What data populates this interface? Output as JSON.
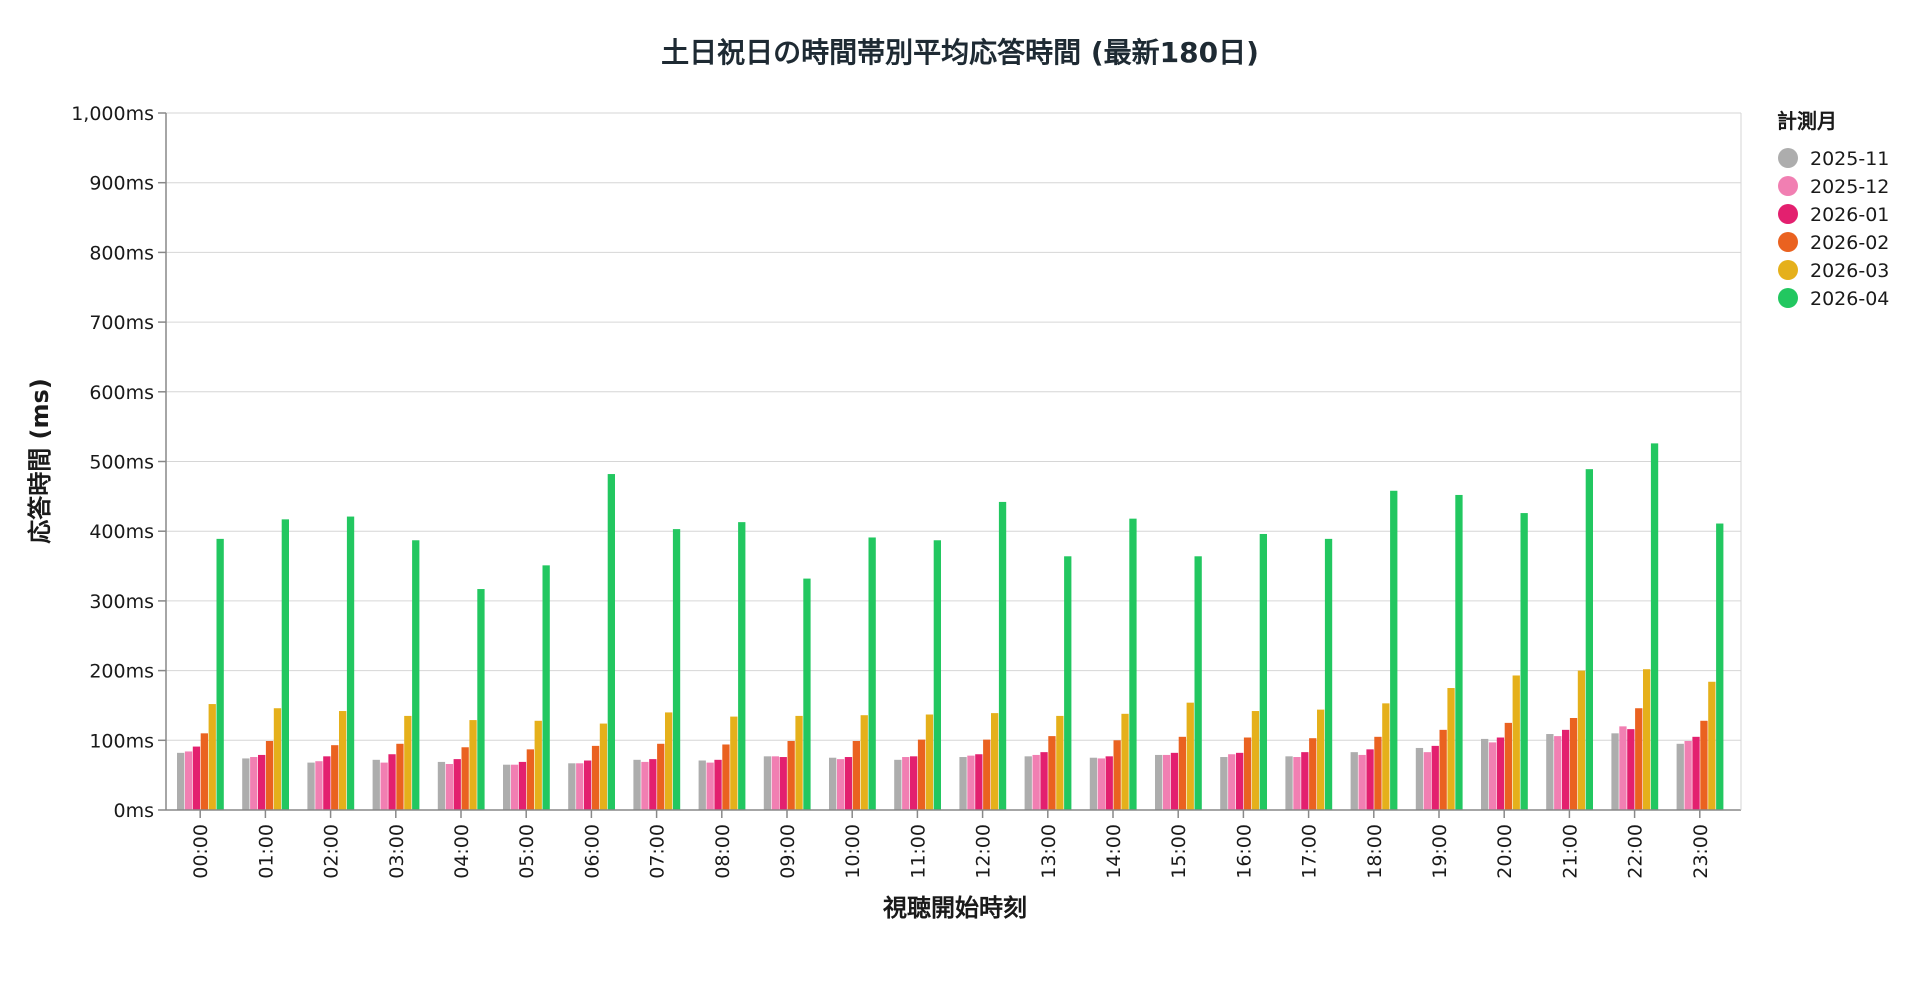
{
  "chart_data": {
    "type": "bar",
    "title": "土日祝日の時間帯別平均応答時間 (最新180日)",
    "xlabel": "視聴開始時刻",
    "ylabel": "応答時間 (ms)",
    "ylim": [
      0,
      1000
    ],
    "yticks": [
      0,
      100,
      200,
      300,
      400,
      500,
      600,
      700,
      800,
      900,
      1000
    ],
    "ytick_labels": [
      "0ms",
      "100ms",
      "200ms",
      "300ms",
      "400ms",
      "500ms",
      "600ms",
      "700ms",
      "800ms",
      "900ms",
      "1,000ms"
    ],
    "grid": true,
    "legend": {
      "title": "計測月",
      "position": "right"
    },
    "categories": [
      "00:00",
      "01:00",
      "02:00",
      "03:00",
      "04:00",
      "05:00",
      "06:00",
      "07:00",
      "08:00",
      "09:00",
      "10:00",
      "11:00",
      "12:00",
      "13:00",
      "14:00",
      "15:00",
      "16:00",
      "17:00",
      "18:00",
      "19:00",
      "20:00",
      "21:00",
      "22:00",
      "23:00"
    ],
    "series": [
      {
        "name": "2025-11",
        "color": "#adadad",
        "values": [
          82,
          74,
          68,
          72,
          69,
          65,
          67,
          72,
          71,
          77,
          75,
          72,
          76,
          77,
          75,
          79,
          76,
          77,
          83,
          89,
          102,
          109,
          110,
          95
        ]
      },
      {
        "name": "2025-12",
        "color": "#f17fb2",
        "values": [
          84,
          76,
          70,
          68,
          66,
          65,
          67,
          69,
          68,
          77,
          73,
          76,
          78,
          79,
          74,
          79,
          80,
          76,
          79,
          83,
          97,
          106,
          120,
          99
        ]
      },
      {
        "name": "2026-01",
        "color": "#e3206f",
        "values": [
          91,
          79,
          77,
          80,
          73,
          69,
          71,
          73,
          72,
          76,
          76,
          77,
          80,
          83,
          77,
          82,
          82,
          83,
          87,
          92,
          104,
          115,
          116,
          105
        ]
      },
      {
        "name": "2026-02",
        "color": "#ea6220",
        "values": [
          110,
          99,
          93,
          95,
          90,
          87,
          92,
          95,
          94,
          99,
          99,
          101,
          101,
          106,
          100,
          105,
          104,
          103,
          105,
          115,
          125,
          132,
          146,
          128
        ]
      },
      {
        "name": "2026-03",
        "color": "#e5b01b",
        "values": [
          152,
          146,
          142,
          135,
          129,
          128,
          124,
          140,
          134,
          135,
          136,
          137,
          139,
          135,
          138,
          154,
          142,
          144,
          153,
          175,
          193,
          200,
          202,
          184
        ]
      },
      {
        "name": "2026-04",
        "color": "#22c760",
        "values": [
          389,
          417,
          421,
          387,
          317,
          351,
          482,
          403,
          413,
          332,
          391,
          387,
          442,
          364,
          418,
          364,
          396,
          389,
          458,
          452,
          426,
          489,
          526,
          411
        ]
      }
    ]
  }
}
